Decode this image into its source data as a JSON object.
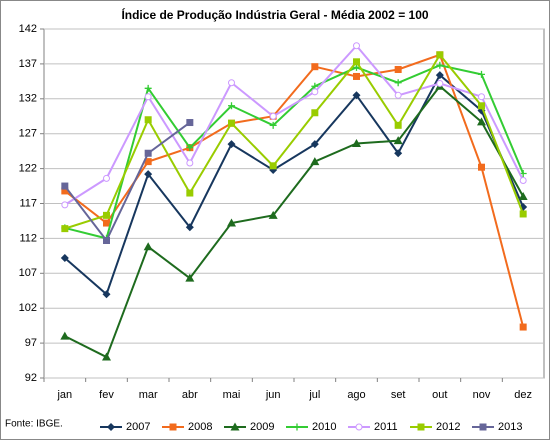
{
  "chart_data": {
    "type": "line",
    "title": "Índice de Produção Indústria Geral - Média 2002 = 100",
    "source": "Fonte: IBGE.",
    "categories": [
      "jan",
      "fev",
      "mar",
      "abr",
      "mai",
      "jun",
      "jul",
      "ago",
      "set",
      "out",
      "nov",
      "dez"
    ],
    "ylim": [
      92,
      142
    ],
    "yticks": [
      92,
      97,
      102,
      107,
      112,
      117,
      122,
      127,
      132,
      137,
      142
    ],
    "grid": true,
    "legend": "bottom",
    "series": [
      {
        "name": "2007",
        "color": "#17375E",
        "marker": "diamond",
        "values": [
          109.2,
          104.0,
          121.2,
          113.6,
          125.5,
          121.8,
          125.5,
          132.5,
          124.2,
          135.4,
          130.3,
          116.5
        ]
      },
      {
        "name": "2008",
        "color": "#F26B1D",
        "marker": "square",
        "values": [
          118.8,
          114.2,
          123.0,
          125.0,
          128.5,
          129.5,
          136.6,
          135.2,
          136.2,
          138.3,
          122.2,
          99.3
        ]
      },
      {
        "name": "2009",
        "color": "#1E6B1E",
        "marker": "triangle",
        "values": [
          98.0,
          95.0,
          110.8,
          106.3,
          114.2,
          115.3,
          123.0,
          125.6,
          126.0,
          133.8,
          128.7,
          118.0
        ]
      },
      {
        "name": "2010",
        "color": "#33CC33",
        "marker": "plus",
        "values": [
          113.5,
          112.0,
          133.5,
          125.0,
          131.0,
          128.2,
          133.8,
          136.5,
          134.3,
          136.8,
          135.5,
          121.3
        ]
      },
      {
        "name": "2011",
        "color": "#CC99FF",
        "marker": "circle",
        "values": [
          116.8,
          120.6,
          132.3,
          122.8,
          134.3,
          129.5,
          133.0,
          139.6,
          132.5,
          134.2,
          132.3,
          120.3
        ]
      },
      {
        "name": "2012",
        "color": "#99CC00",
        "marker": "square",
        "values": [
          113.4,
          115.3,
          129.0,
          118.5,
          128.5,
          122.4,
          130.0,
          137.3,
          128.2,
          138.3,
          131.0,
          115.5
        ]
      },
      {
        "name": "2013",
        "color": "#666699",
        "marker": "square",
        "values": [
          119.5,
          111.7,
          124.2,
          128.6,
          null,
          null,
          null,
          null,
          null,
          null,
          null,
          null
        ]
      }
    ]
  }
}
